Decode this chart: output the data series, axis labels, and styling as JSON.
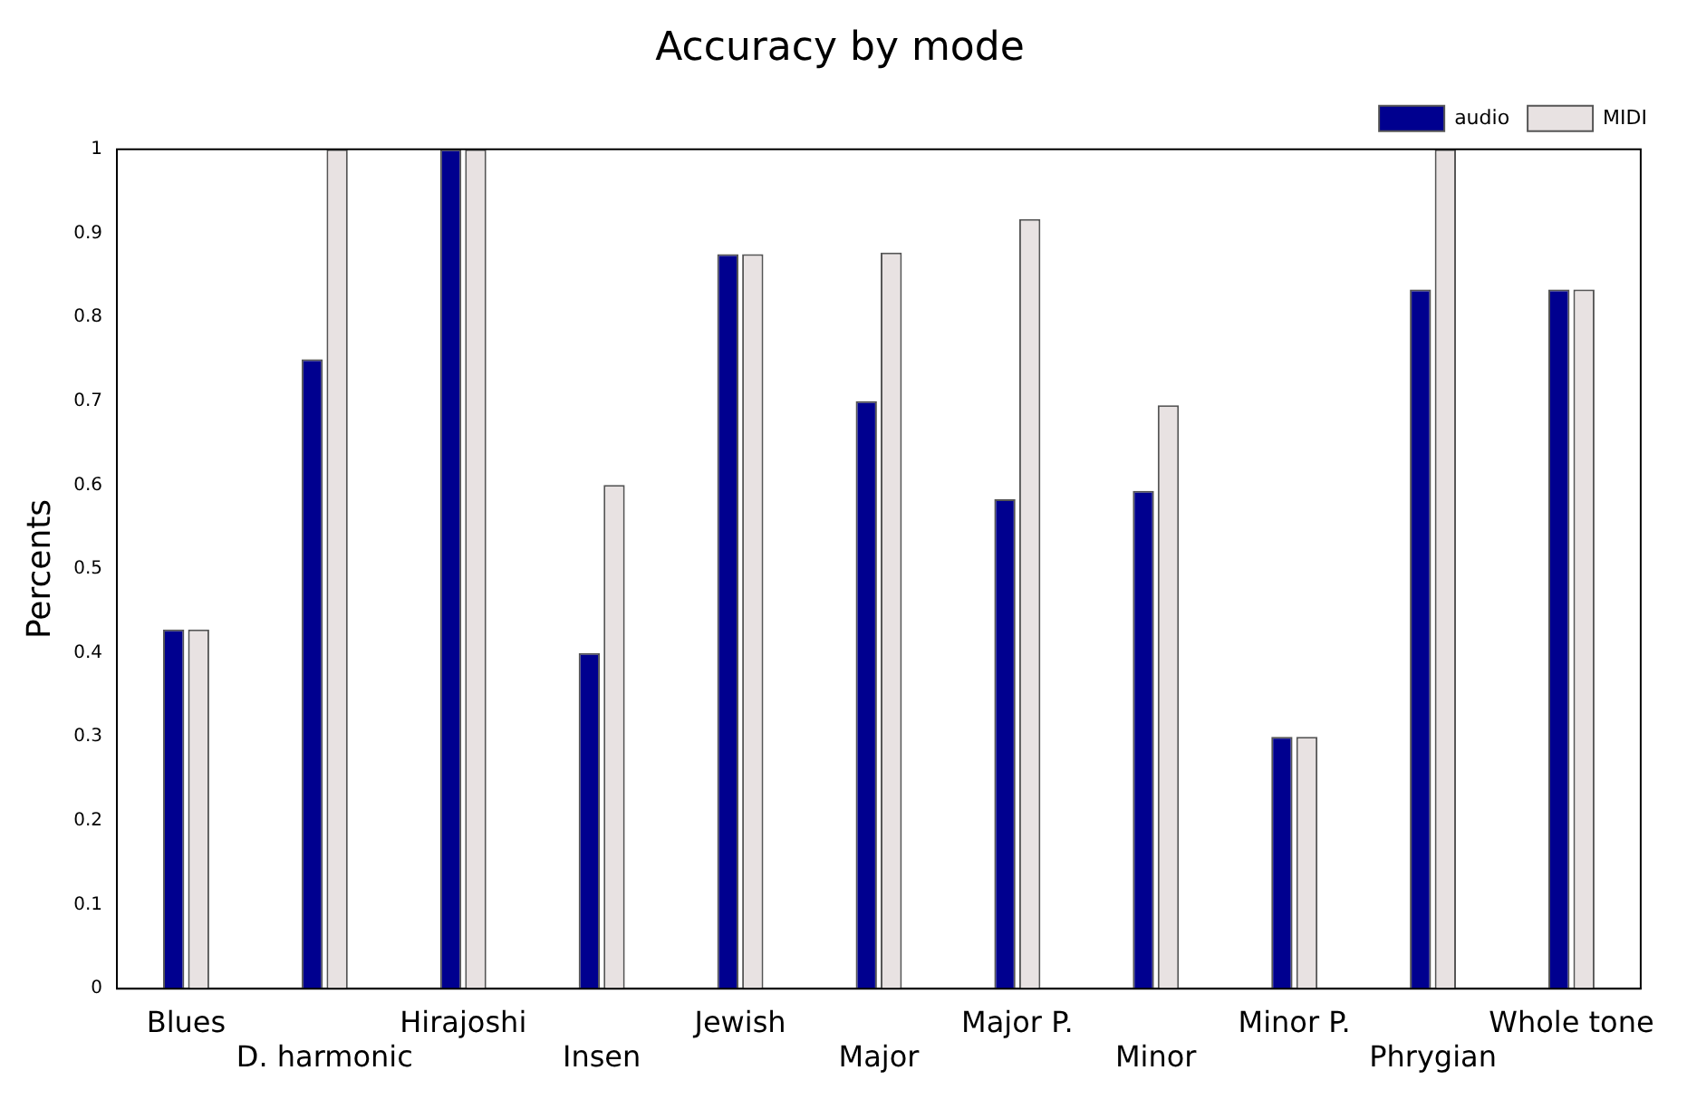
{
  "chart_data": {
    "type": "bar",
    "title": "Accuracy by mode",
    "ylabel": "Percents",
    "categories": [
      "Blues",
      "D. harmonic",
      "Hirajoshi",
      "Insen",
      "Jewish",
      "Major",
      "Major P.",
      "Minor",
      "Minor P.",
      "Phrygian",
      "Whole tone"
    ],
    "series": [
      {
        "name": "audio",
        "color": "#00008f",
        "values": [
          0.428,
          0.75,
          1,
          0.4,
          0.875,
          0.7,
          0.583,
          0.593,
          0.3,
          0.833,
          0.833
        ]
      },
      {
        "name": "MIDI",
        "color": "#e8e2e2",
        "values": [
          0.428,
          1,
          1,
          0.6,
          0.875,
          0.877,
          0.917,
          0.695,
          0.3,
          1,
          0.833
        ]
      }
    ],
    "ylim": [
      0,
      1
    ],
    "yticks": [
      0,
      0.1,
      0.2,
      0.3,
      0.4,
      0.5,
      0.6,
      0.7,
      0.8,
      0.9,
      1
    ],
    "grid": false,
    "legend": "top right"
  }
}
